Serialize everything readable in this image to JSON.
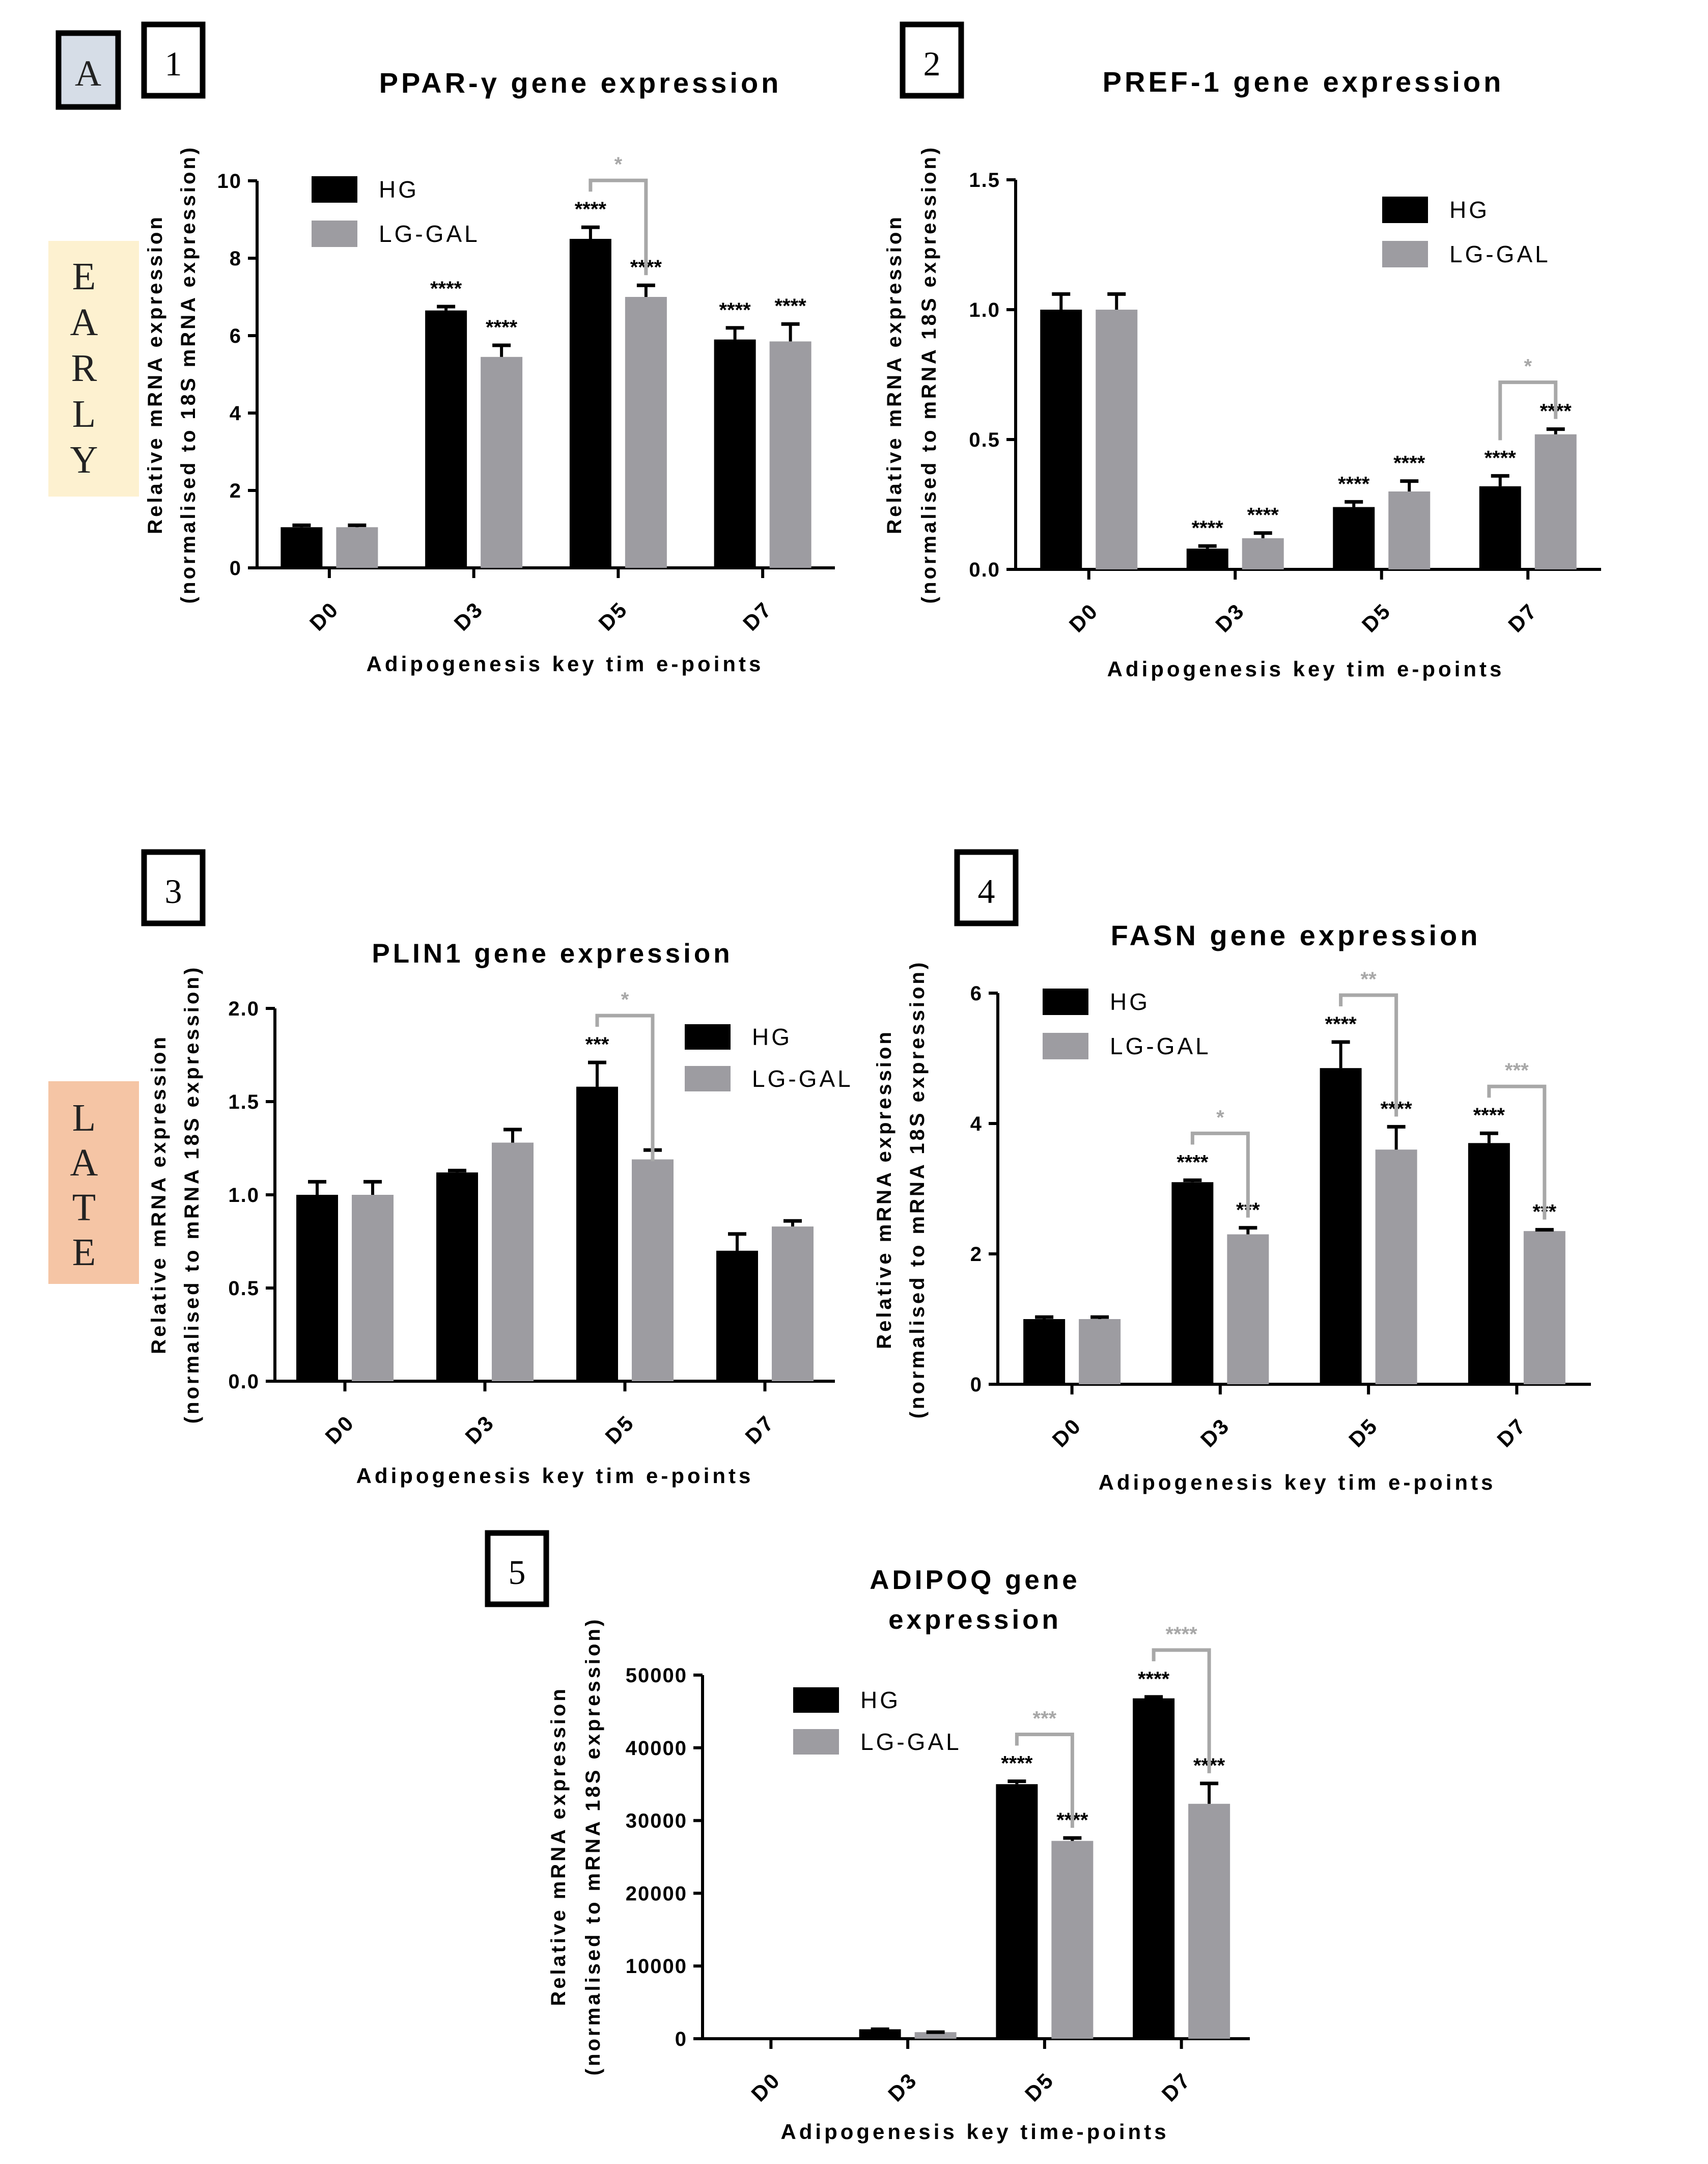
{
  "figure_label": "A",
  "group_labels": {
    "early": [
      "E",
      "A",
      "R",
      "L",
      "Y"
    ],
    "late": [
      "L",
      "A",
      "T",
      "E"
    ]
  },
  "colors": {
    "hg": "#000000",
    "lg_gal": "#9d9ca1",
    "sig_black": "#000000",
    "sig_gray": "#a8a8a8",
    "early_bg": "#fdf1d0",
    "late_bg": "#f5c5a5",
    "figure_label_bg": "#d6dde7"
  },
  "chart_data": [
    {
      "panel": "1",
      "type": "bar",
      "title": "PPAR-γ gene expression",
      "xlabel": "Adipogenesis key tim e-points",
      "ylabel_line1": "Relative mRNA expression",
      "ylabel_line2": "(normalised to 18S mRNA expression)",
      "categories": [
        "D0",
        "D3",
        "D5",
        "D7"
      ],
      "ylim": [
        0,
        10
      ],
      "yticks": [
        "0",
        "2",
        "4",
        "6",
        "8",
        "10"
      ],
      "ytick_values": [
        0,
        2,
        4,
        6,
        8,
        10
      ],
      "legend_position": "top-left",
      "series": [
        {
          "name": "HG",
          "values": [
            1.05,
            6.65,
            8.5,
            5.9
          ],
          "errors": [
            0.05,
            0.1,
            0.3,
            0.3
          ],
          "labels": [
            "",
            "****",
            "****",
            "****"
          ]
        },
        {
          "name": "LG-GAL",
          "values": [
            1.05,
            5.45,
            7.0,
            5.85
          ],
          "errors": [
            0.05,
            0.3,
            0.3,
            0.45
          ],
          "labels": [
            "",
            "****",
            "****",
            "****"
          ]
        }
      ],
      "comparisons": [
        {
          "category": 2,
          "label": "*",
          "color": "gray"
        }
      ]
    },
    {
      "panel": "2",
      "type": "bar",
      "title": "PREF-1 gene expression",
      "xlabel": "Adipogenesis key tim e-points",
      "ylabel_line1": "Relative mRNA expression",
      "ylabel_line2": "(normalised to mRNA 18S expression)",
      "categories": [
        "D0",
        "D3",
        "D5",
        "D7"
      ],
      "ylim": [
        0,
        1.5
      ],
      "yticks": [
        "0.0",
        "0.5",
        "1.0",
        "1.5"
      ],
      "ytick_values": [
        0,
        0.5,
        1.0,
        1.5
      ],
      "legend_position": "top-right",
      "series": [
        {
          "name": "HG",
          "values": [
            1.0,
            0.08,
            0.24,
            0.32
          ],
          "errors": [
            0.06,
            0.01,
            0.02,
            0.04
          ],
          "labels": [
            "",
            "****",
            "****",
            "****"
          ]
        },
        {
          "name": "LG-GAL",
          "values": [
            1.0,
            0.12,
            0.3,
            0.52
          ],
          "errors": [
            0.06,
            0.02,
            0.04,
            0.02
          ],
          "labels": [
            "",
            "****",
            "****",
            "****"
          ]
        }
      ],
      "comparisons": [
        {
          "category": 3,
          "label": "*",
          "color": "gray"
        }
      ]
    },
    {
      "panel": "3",
      "type": "bar",
      "title": "PLIN1 gene expression",
      "xlabel": "Adipogenesis key tim e-points",
      "ylabel_line1": "Relative mRNA expression",
      "ylabel_line2": "(normalised to mRNA 18S expression)",
      "categories": [
        "D0",
        "D3",
        "D5",
        "D7"
      ],
      "ylim": [
        0,
        2.0
      ],
      "yticks": [
        "0.0",
        "0.5",
        "1.0",
        "1.5",
        "2.0"
      ],
      "ytick_values": [
        0,
        0.5,
        1.0,
        1.5,
        2.0
      ],
      "legend_position": "top-right",
      "series": [
        {
          "name": "HG",
          "values": [
            1.0,
            1.12,
            1.58,
            0.7
          ],
          "errors": [
            0.07,
            0.01,
            0.13,
            0.09
          ],
          "labels": [
            "",
            "",
            "***",
            ""
          ]
        },
        {
          "name": "LG-GAL",
          "values": [
            1.0,
            1.28,
            1.19,
            0.83
          ],
          "errors": [
            0.07,
            0.07,
            0.05,
            0.03
          ],
          "labels": [
            "",
            "",
            "",
            ""
          ]
        }
      ],
      "comparisons": [
        {
          "category": 2,
          "label": "*",
          "color": "gray"
        }
      ]
    },
    {
      "panel": "4",
      "type": "bar",
      "title": "FASN gene expression",
      "xlabel": "Adipogenesis key tim e-points",
      "ylabel_line1": "Relative mRNA expression",
      "ylabel_line2": "(normalised to mRNA 18S expression)",
      "categories": [
        "D0",
        "D3",
        "D5",
        "D7"
      ],
      "ylim": [
        0,
        6
      ],
      "yticks": [
        "0",
        "2",
        "4",
        "6"
      ],
      "ytick_values": [
        0,
        2,
        4,
        6
      ],
      "legend_position": "top-left",
      "series": [
        {
          "name": "HG",
          "values": [
            1.0,
            3.1,
            4.85,
            3.7
          ],
          "errors": [
            0.03,
            0.03,
            0.4,
            0.15
          ],
          "labels": [
            "",
            "****",
            "****",
            "****"
          ]
        },
        {
          "name": "LG-GAL",
          "values": [
            1.0,
            2.3,
            3.6,
            2.35
          ],
          "errors": [
            0.03,
            0.1,
            0.35,
            0.02
          ],
          "labels": [
            "",
            "***",
            "****",
            "***"
          ]
        }
      ],
      "comparisons": [
        {
          "category": 1,
          "label": "*",
          "color": "gray"
        },
        {
          "category": 2,
          "label": "**",
          "color": "gray"
        },
        {
          "category": 3,
          "label": "***",
          "color": "gray"
        }
      ]
    },
    {
      "panel": "5",
      "type": "bar",
      "title_lines": [
        "ADIPOQ gene",
        "expression"
      ],
      "xlabel": "Adipogenesis key time-points",
      "ylabel_line1": "Relative mRNA expression",
      "ylabel_line2": "(normalised to mRNA 18S expression)",
      "categories": [
        "D0",
        "D3",
        "D5",
        "D7"
      ],
      "ylim": [
        0,
        50000
      ],
      "yticks": [
        "0",
        "10000",
        "20000",
        "30000",
        "40000",
        "50000"
      ],
      "ytick_values": [
        0,
        10000,
        20000,
        30000,
        40000,
        50000
      ],
      "legend_position": "top-left",
      "series": [
        {
          "name": "HG",
          "values": [
            0,
            1300,
            35000,
            46800
          ],
          "errors": [
            0,
            0,
            400,
            200
          ],
          "labels": [
            "",
            "",
            "****",
            "****"
          ]
        },
        {
          "name": "LG-GAL",
          "values": [
            0,
            900,
            27200,
            32300
          ],
          "errors": [
            0,
            0,
            400,
            2800
          ],
          "labels": [
            "",
            "",
            "****",
            "****"
          ]
        }
      ],
      "comparisons": [
        {
          "category": 2,
          "label": "***",
          "color": "gray"
        },
        {
          "category": 3,
          "label": "****",
          "color": "gray"
        }
      ]
    }
  ]
}
